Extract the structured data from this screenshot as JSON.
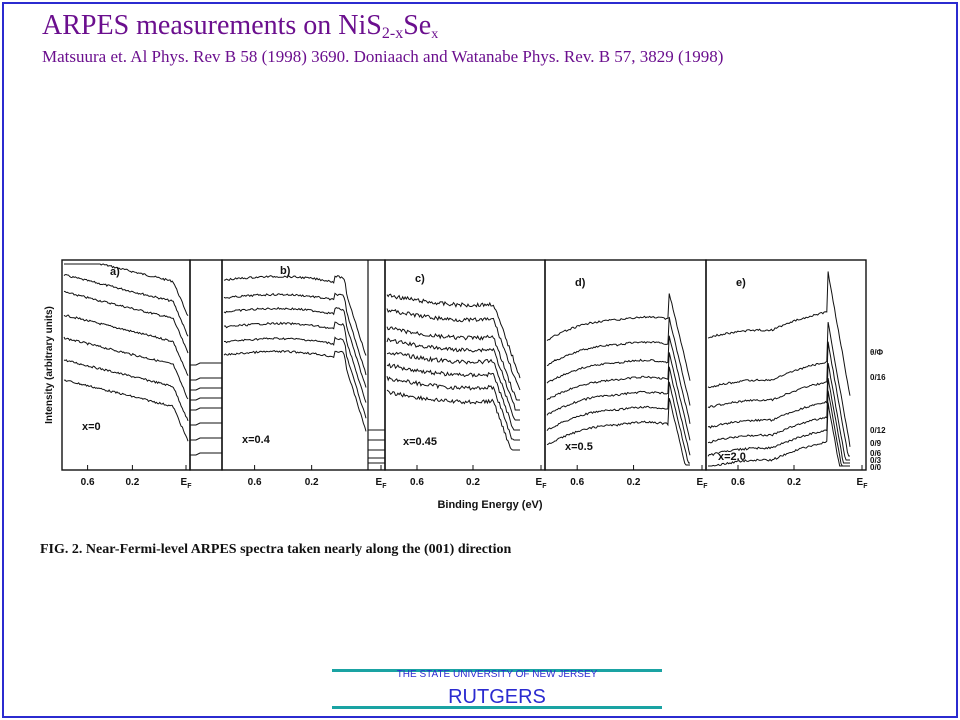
{
  "slide": {
    "title_main": "ARPES measurements on NiS",
    "title_sub1": "2-x",
    "title_mid": "Se",
    "title_sub2": "x",
    "citation": "Matsuura et. Al Phys. Rev B 58 (1998) 3690. Doniaach and Watanabe Phys. Rev. B 57, 3829 (1998)"
  },
  "figure": {
    "ylabel": "Intensity (arbitrary units)",
    "xlabel": "Binding Energy (eV)",
    "caption": "FIG. 2.  Near-Fermi-level ARPES spectra taken nearly along the (001) direction",
    "panels": [
      {
        "tag": "a)",
        "comp": "x=0",
        "shape": "a"
      },
      {
        "tag": "b)",
        "comp": "x=0.4",
        "shape": "b"
      },
      {
        "tag": "c)",
        "comp": "x=0.45",
        "shape": "c"
      },
      {
        "tag": "d)",
        "comp": "x=0.5",
        "shape": "d"
      },
      {
        "tag": "e)",
        "comp": "x=2.0",
        "shape": "e"
      }
    ],
    "ticks": [
      "0.6",
      "0.2",
      "E"
    ],
    "tick_sub": "F",
    "angle_labels": [
      "θ/Φ",
      "0/16",
      "0/12",
      "0/9",
      "0/6",
      "0/3",
      "0/0"
    ]
  },
  "footer": {
    "university": "THE STATE UNIVERSITY OF NEW JERSEY",
    "name": "RUTGERS"
  }
}
